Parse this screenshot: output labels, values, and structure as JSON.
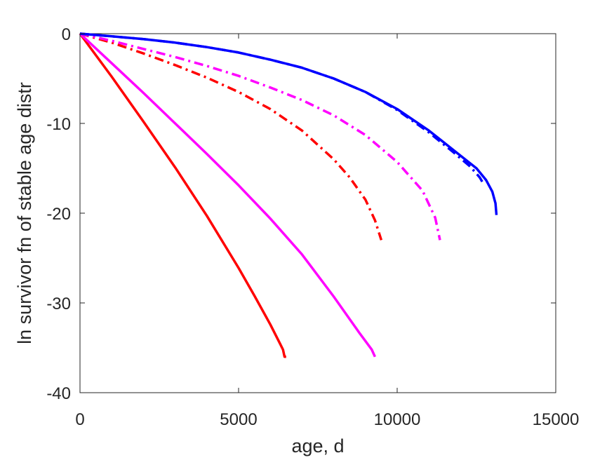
{
  "chart_data": {
    "type": "line",
    "title": "",
    "xlabel": "age, d",
    "ylabel": "ln survivor fn of stable age distr",
    "xlim": [
      0,
      15000
    ],
    "ylim": [
      -40,
      0
    ],
    "xticks": [
      0,
      5000,
      10000,
      15000
    ],
    "yticks": [
      -40,
      -30,
      -20,
      -10,
      0
    ],
    "xtick_labels": [
      "0",
      "5000",
      "10000",
      "15000"
    ],
    "ytick_labels": [
      "-40",
      "-30",
      "-20",
      "-10",
      "0"
    ],
    "grid": false,
    "legend": "none",
    "series": [
      {
        "color": "#ff0000",
        "style": "solid",
        "x": [
          0,
          1000,
          2000,
          3000,
          4000,
          5000,
          5500,
          6000,
          6300,
          6400,
          6450,
          6500
        ],
        "y": [
          0,
          -4.8,
          -9.8,
          -14.9,
          -20.3,
          -26.1,
          -29.2,
          -32.4,
          -34.5,
          -35.2,
          -36.0,
          -36.0
        ]
      },
      {
        "color": "#ff00ff",
        "style": "solid",
        "x": [
          0,
          1000,
          2000,
          3000,
          4000,
          5000,
          6000,
          7000,
          8000,
          8800,
          9200,
          9300
        ],
        "y": [
          0,
          -3.3,
          -6.6,
          -10.0,
          -13.4,
          -16.9,
          -20.6,
          -24.6,
          -29.3,
          -33.3,
          -35.2,
          -36.0
        ]
      },
      {
        "color": "#ff0000",
        "style": "dashdot",
        "x": [
          0,
          1000,
          2000,
          3000,
          4000,
          5000,
          6000,
          7000,
          8000,
          8500,
          9000,
          9300,
          9500
        ],
        "y": [
          0,
          -1.0,
          -2.2,
          -3.5,
          -4.9,
          -6.5,
          -8.4,
          -10.8,
          -14.0,
          -16.0,
          -18.5,
          -20.8,
          -23.0
        ]
      },
      {
        "color": "#ff00ff",
        "style": "dashdot",
        "x": [
          0,
          1000,
          2000,
          3000,
          4000,
          5000,
          6000,
          7000,
          8000,
          9000,
          10000,
          10800,
          11200,
          11350
        ],
        "y": [
          0,
          -0.8,
          -1.7,
          -2.6,
          -3.6,
          -4.7,
          -6.0,
          -7.4,
          -9.1,
          -11.3,
          -14.3,
          -17.5,
          -20.5,
          -23.0
        ]
      },
      {
        "color": "#0000ff",
        "style": "dashdot",
        "x": [
          0,
          1000,
          2000,
          3000,
          4000,
          5000,
          6000,
          7000,
          8000,
          9000,
          10000,
          11000,
          11800,
          12300,
          12600,
          12750
        ],
        "y": [
          0,
          -0.3,
          -0.6,
          -1.0,
          -1.5,
          -2.1,
          -2.9,
          -3.8,
          -5.0,
          -6.5,
          -8.5,
          -11.0,
          -13.3,
          -14.8,
          -16.0,
          -16.9
        ]
      },
      {
        "color": "#0000ff",
        "style": "solid",
        "x": [
          0,
          1000,
          2000,
          3000,
          4000,
          5000,
          6000,
          7000,
          8000,
          9000,
          10000,
          11000,
          12000,
          12500,
          12800,
          13000,
          13100,
          13130
        ],
        "y": [
          0,
          -0.3,
          -0.6,
          -1.0,
          -1.5,
          -2.1,
          -2.9,
          -3.8,
          -5.0,
          -6.5,
          -8.4,
          -10.8,
          -13.6,
          -15.0,
          -16.3,
          -17.6,
          -18.9,
          -20.2
        ]
      }
    ]
  }
}
